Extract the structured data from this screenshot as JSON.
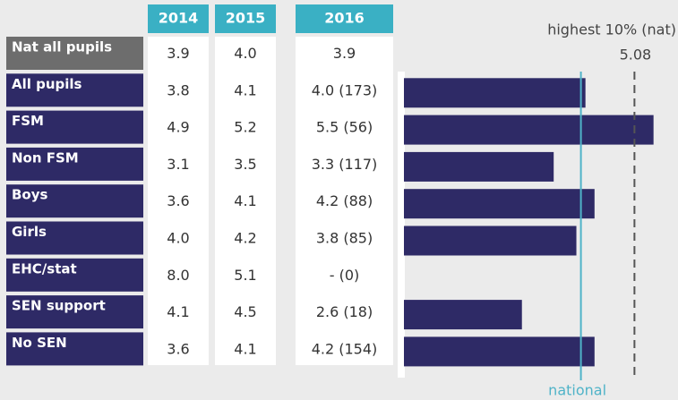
{
  "chart_data": {
    "type": "bar",
    "columns": [
      "2014",
      "2015",
      "2016"
    ],
    "reference_row": {
      "label": "Nat all pupils",
      "cells": [
        "3.9",
        "4.0",
        "3.9"
      ]
    },
    "categories": [
      "All pupils",
      "FSM",
      "Non FSM",
      "Boys",
      "Girls",
      "EHC/stat",
      "SEN support",
      "No SEN"
    ],
    "cells": [
      [
        "3.8",
        "4.1"
      ],
      [
        "4.9",
        "5.2"
      ],
      [
        "3.1",
        "3.5"
      ],
      [
        "3.6",
        "4.1"
      ],
      [
        "4.0",
        "4.2"
      ],
      [
        "8.0",
        "5.1"
      ],
      [
        "4.1",
        "4.5"
      ],
      [
        "3.6",
        "4.1"
      ]
    ],
    "values": [
      4.0,
      5.5,
      3.3,
      4.2,
      3.8,
      null,
      2.6,
      4.2
    ],
    "value_labels": [
      "4.0 (173)",
      "5.5 (56)",
      "3.3 (117)",
      "4.2 (88)",
      "3.8 (85)",
      "- (0)",
      "2.6 (18)",
      "4.2 (154)"
    ],
    "color": "#2e2a66",
    "xlim": [
      0,
      6
    ],
    "reference_lines": [
      {
        "label": "national",
        "value": 3.9,
        "color": "#4fb3c8"
      },
      {
        "label": "highest 10% (nat)",
        "value": 5.08,
        "value_label": "5.08",
        "color": "#555555",
        "dashed": true
      }
    ]
  }
}
